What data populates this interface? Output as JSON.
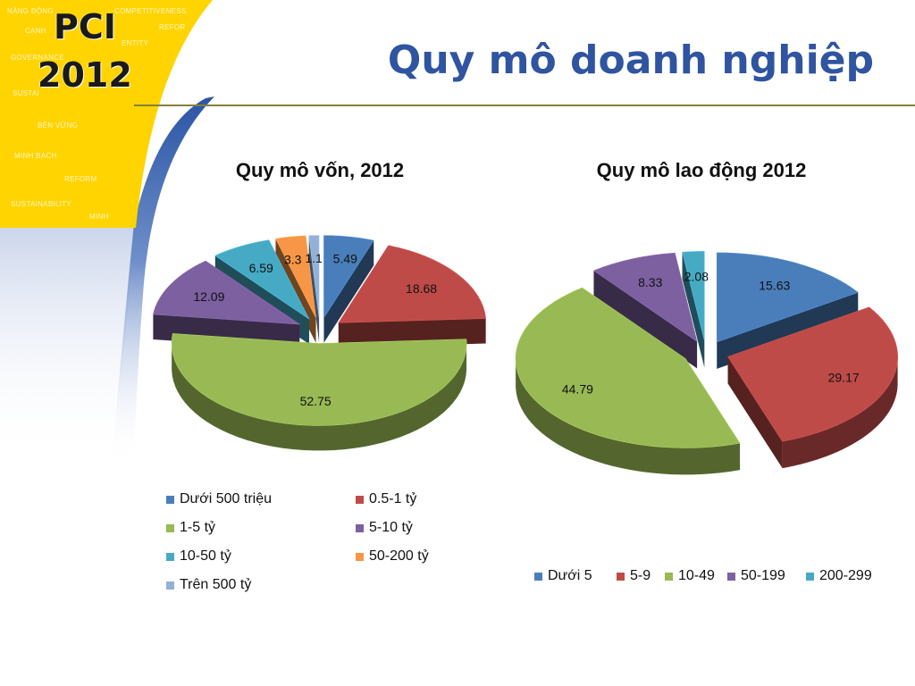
{
  "header": {
    "logo_line1": "PCI",
    "logo_line2": "2012",
    "title": "Quy mô doanh nghiệp",
    "watermark_words": [
      "NĂNG ĐỘNG",
      "COMPETITIVENESS",
      "CẠNH",
      "REFOR",
      "ENTITY",
      "GOVERNANCE",
      "SUSTAI",
      "BỀN VỮNG",
      "MINH BẠCH",
      "REFORM",
      "SUSTAINABILITY",
      "MINH"
    ]
  },
  "colors": {
    "logo_yellow": "#ffd400",
    "swoosh_blue": "#2a55a4",
    "title_blue": "#2f54a0",
    "rule": "#857e3a"
  },
  "chart_data": [
    {
      "type": "pie",
      "style": "3d-exploded",
      "title": "Quy mô vốn, 2012",
      "categories": [
        "Dưới 500 triệu",
        "0.5-1 tỷ",
        "1-5 tỷ",
        "5-10 tỷ",
        "10-50 tỷ",
        "50-200 tỷ",
        "Trên 500 tỷ"
      ],
      "values": [
        5.49,
        18.68,
        52.75,
        12.09,
        6.59,
        3.3,
        1.1
      ],
      "data_labels": [
        "5.49",
        "18.68",
        "52.75",
        "12.09",
        "6.59",
        "3.3",
        "1.1"
      ],
      "colors": [
        "#4a7ebb",
        "#be4b48",
        "#98b954",
        "#7d60a0",
        "#46aac5",
        "#f79646",
        "#93b1d6"
      ],
      "legend_position": "bottom",
      "legend_columns": 2
    },
    {
      "type": "pie",
      "style": "3d-exploded",
      "title": "Quy mô lao động 2012",
      "categories": [
        "Dưới 5",
        "5-9",
        "10-49",
        "50-199",
        "200-299"
      ],
      "values": [
        15.63,
        29.17,
        44.79,
        8.33,
        2.08
      ],
      "data_labels": [
        "15.63",
        "29.17",
        "44.79",
        "8.33",
        "2.08"
      ],
      "colors": [
        "#4a7ebb",
        "#be4b48",
        "#98b954",
        "#7d60a0",
        "#46aac5"
      ],
      "legend_position": "bottom",
      "legend_columns": 5
    }
  ]
}
